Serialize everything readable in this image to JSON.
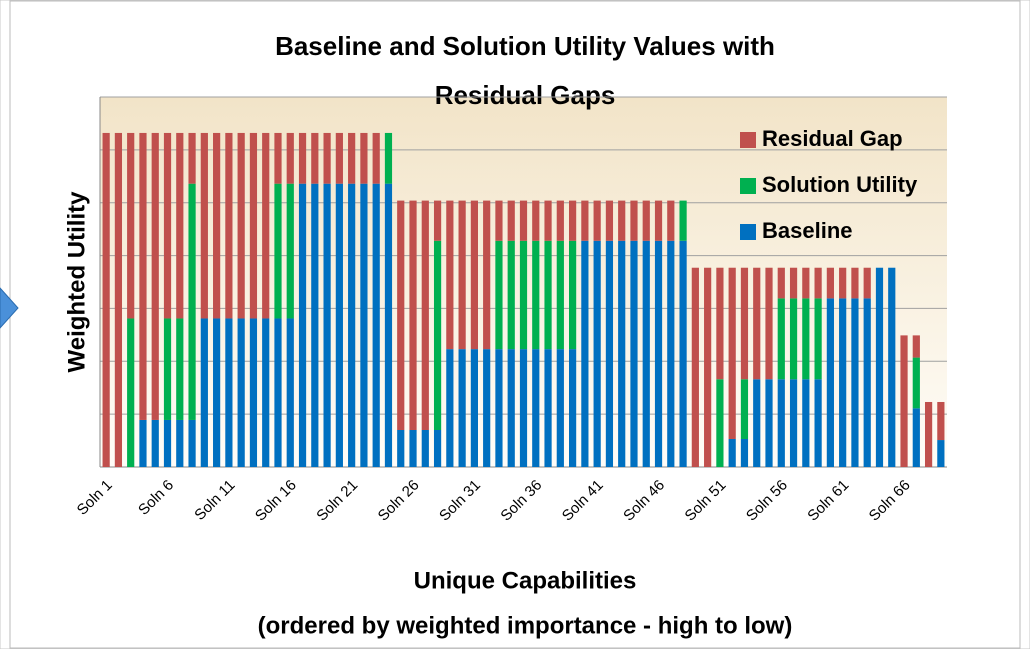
{
  "chart_data": {
    "type": "stacked_bar",
    "title": [
      "Baseline and Solution Utility Values with",
      "Residual Gaps"
    ],
    "ylabel": "Weighted Utility",
    "xlabel": [
      "Unique Capabilities",
      "(ordered by weighted importance  - high to low)"
    ],
    "categories": [
      "Soln 1",
      null,
      null,
      null,
      null,
      "Soln 6",
      null,
      null,
      null,
      null,
      "Soln 11",
      null,
      null,
      null,
      null,
      "Soln 16",
      null,
      null,
      null,
      null,
      "Soln 21",
      null,
      null,
      null,
      null,
      "Soln 26",
      null,
      null,
      null,
      null,
      "Soln 31",
      null,
      null,
      null,
      null,
      "Soln 36",
      null,
      null,
      null,
      null,
      "Soln 41",
      null,
      null,
      null,
      null,
      "Soln 46",
      null,
      null,
      null,
      null,
      "Soln 51",
      null,
      null,
      null,
      null,
      "Soln 56",
      null,
      null,
      null,
      null,
      "Soln 61",
      null,
      null,
      null,
      null,
      "Soln 66",
      null,
      null,
      null
    ],
    "series": [
      {
        "name": "Baseline",
        "color": "#0070c0",
        "values": [
          0,
          0,
          0,
          0.89,
          0.89,
          0.89,
          0.89,
          0.89,
          2.81,
          2.81,
          2.81,
          2.81,
          2.81,
          2.81,
          2.81,
          2.81,
          5.36,
          5.36,
          5.36,
          5.36,
          5.36,
          5.36,
          5.36,
          5.36,
          0.7,
          0.7,
          0.7,
          0.7,
          2.23,
          2.23,
          2.23,
          2.23,
          2.23,
          2.23,
          2.23,
          2.23,
          2.23,
          2.23,
          2.23,
          4.28,
          4.28,
          4.28,
          4.28,
          4.28,
          4.28,
          4.28,
          4.28,
          4.28,
          0,
          0,
          0,
          0.53,
          0.53,
          1.66,
          1.66,
          1.66,
          1.66,
          1.66,
          1.66,
          3.19,
          3.19,
          3.19,
          3.19,
          3.77,
          3.77,
          0,
          1.11,
          0,
          0.51
        ]
      },
      {
        "name": "Solution Utility",
        "color": "#00b050",
        "values": [
          0,
          0,
          2.81,
          0,
          0,
          1.92,
          1.92,
          4.47,
          0,
          0,
          0,
          0,
          0,
          0,
          2.55,
          2.55,
          0,
          0,
          0,
          0,
          0,
          0,
          0,
          0.96,
          0,
          0,
          0,
          3.58,
          0,
          0,
          0,
          0,
          2.05,
          2.05,
          2.05,
          2.05,
          2.05,
          2.05,
          2.05,
          0,
          0,
          0,
          0,
          0,
          0,
          0,
          0,
          0.76,
          0,
          0,
          1.66,
          0,
          1.13,
          0,
          0,
          1.53,
          1.53,
          1.53,
          1.53,
          0,
          0,
          0,
          0,
          0,
          0,
          0,
          0.96,
          0,
          0
        ]
      },
      {
        "name": "Residual Gap",
        "color": "#c0504d",
        "values": [
          6.32,
          6.32,
          3.51,
          5.43,
          5.43,
          3.51,
          3.51,
          0.96,
          3.51,
          3.51,
          3.51,
          3.51,
          3.51,
          3.51,
          0.96,
          0.96,
          0.96,
          0.96,
          0.96,
          0.96,
          0.96,
          0.96,
          0.96,
          0,
          4.34,
          4.34,
          4.34,
          0.76,
          2.81,
          2.81,
          2.81,
          2.81,
          0.76,
          0.76,
          0.76,
          0.76,
          0.76,
          0.76,
          0.76,
          0.76,
          0.76,
          0.76,
          0.76,
          0.76,
          0.76,
          0.76,
          0.76,
          0,
          3.77,
          3.77,
          2.11,
          3.24,
          2.11,
          2.11,
          2.11,
          0.58,
          0.58,
          0.58,
          0.58,
          0.58,
          0.58,
          0.58,
          0.58,
          0,
          0,
          2.49,
          0.42,
          1.23,
          0.72
        ]
      }
    ],
    "ylim": [
      0,
      7
    ],
    "yticks": [
      0,
      1,
      2,
      3,
      4,
      5,
      6,
      7
    ],
    "grid": true,
    "legend": "upper right"
  }
}
